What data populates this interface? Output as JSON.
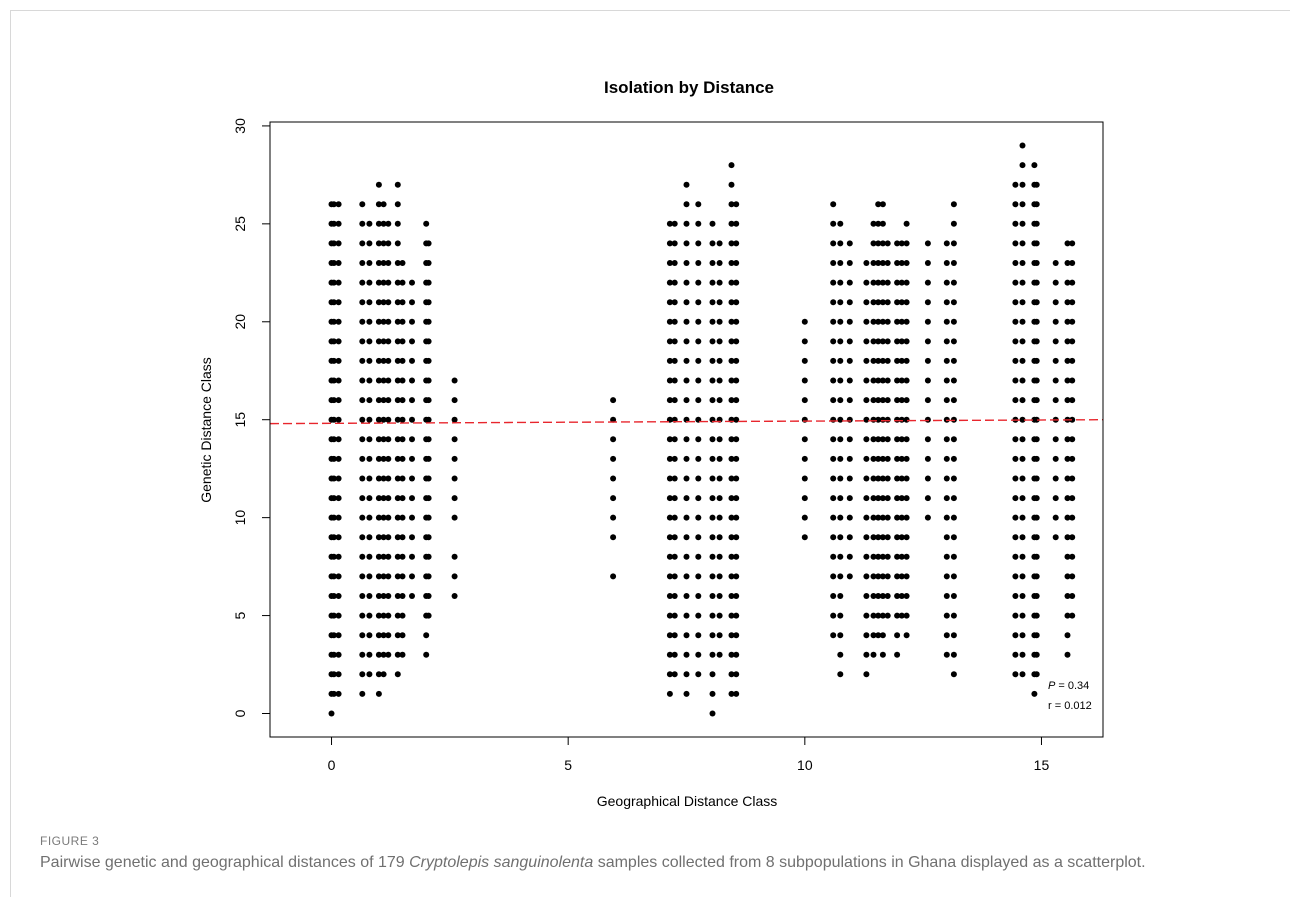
{
  "caption": {
    "label": "FIGURE 3",
    "text_before": "Pairwise genetic and geographical distances of 179 ",
    "species": "Cryptolepis sanguinolenta",
    "text_after": " samples collected from 8 subpopulations in Ghana displayed as a scatterplot."
  },
  "chart_data": {
    "type": "scatter",
    "title": "Isolation by Distance",
    "xlabel": "Geographical Distance Class",
    "ylabel": "Genetic Distance Class",
    "xlim": [
      -1.3,
      16.3
    ],
    "ylim": [
      -1.2,
      30.2
    ],
    "xticks": [
      0,
      5,
      10,
      15
    ],
    "yticks": [
      0,
      5,
      10,
      15,
      20,
      25,
      30
    ],
    "grid": false,
    "point_color": "#000000",
    "regression": {
      "color": "#e8262d",
      "style": "dashed",
      "y_at_xmin": 14.8,
      "y_at_xmax": 15.0
    },
    "annotation": {
      "p_label": "P",
      "p_value": "= 0.34",
      "r_text": "r = 0.012"
    },
    "columns": [
      {
        "x": 0.0,
        "y_min": 0,
        "y_max": 26,
        "gaps": []
      },
      {
        "x": 0.05,
        "y_min": 1,
        "y_max": 26,
        "gaps": []
      },
      {
        "x": 0.15,
        "y_min": 1,
        "y_max": 26,
        "gaps": []
      },
      {
        "x": 0.65,
        "y_min": 1,
        "y_max": 26,
        "gaps": []
      },
      {
        "x": 0.8,
        "y_min": 2,
        "y_max": 25,
        "gaps": []
      },
      {
        "x": 1.0,
        "y_min": 1,
        "y_max": 27,
        "gaps": []
      },
      {
        "x": 1.1,
        "y_min": 2,
        "y_max": 26,
        "gaps": []
      },
      {
        "x": 1.2,
        "y_min": 3,
        "y_max": 25,
        "gaps": []
      },
      {
        "x": 1.4,
        "y_min": 2,
        "y_max": 27,
        "gaps": []
      },
      {
        "x": 1.5,
        "y_min": 3,
        "y_max": 23,
        "gaps": []
      },
      {
        "x": 1.7,
        "y_min": 6,
        "y_max": 22,
        "gaps": []
      },
      {
        "x": 2.0,
        "y_min": 3,
        "y_max": 25,
        "gaps": []
      },
      {
        "x": 2.05,
        "y_min": 5,
        "y_max": 24,
        "gaps": []
      },
      {
        "x": 2.6,
        "y_min": 6,
        "y_max": 17,
        "gaps": [
          9
        ]
      },
      {
        "x": 5.95,
        "y_min": 7,
        "y_max": 16,
        "gaps": [
          8
        ]
      },
      {
        "x": 7.15,
        "y_min": 1,
        "y_max": 25,
        "gaps": []
      },
      {
        "x": 7.25,
        "y_min": 2,
        "y_max": 25,
        "gaps": []
      },
      {
        "x": 7.5,
        "y_min": 1,
        "y_max": 27,
        "gaps": []
      },
      {
        "x": 7.75,
        "y_min": 2,
        "y_max": 26,
        "gaps": []
      },
      {
        "x": 8.05,
        "y_min": 0,
        "y_max": 25,
        "gaps": []
      },
      {
        "x": 8.2,
        "y_min": 3,
        "y_max": 24,
        "gaps": []
      },
      {
        "x": 8.45,
        "y_min": 1,
        "y_max": 28,
        "gaps": []
      },
      {
        "x": 8.55,
        "y_min": 1,
        "y_max": 26,
        "gaps": []
      },
      {
        "x": 10.0,
        "y_min": 9,
        "y_max": 20,
        "gaps": []
      },
      {
        "x": 10.6,
        "y_min": 4,
        "y_max": 26,
        "gaps": []
      },
      {
        "x": 10.75,
        "y_min": 2,
        "y_max": 25,
        "gaps": []
      },
      {
        "x": 10.95,
        "y_min": 7,
        "y_max": 24,
        "gaps": []
      },
      {
        "x": 11.3,
        "y_min": 2,
        "y_max": 23,
        "gaps": []
      },
      {
        "x": 11.45,
        "y_min": 3,
        "y_max": 25,
        "gaps": []
      },
      {
        "x": 11.55,
        "y_min": 4,
        "y_max": 26,
        "gaps": []
      },
      {
        "x": 11.65,
        "y_min": 3,
        "y_max": 26,
        "gaps": []
      },
      {
        "x": 11.75,
        "y_min": 5,
        "y_max": 24,
        "gaps": []
      },
      {
        "x": 11.95,
        "y_min": 3,
        "y_max": 24,
        "gaps": []
      },
      {
        "x": 12.05,
        "y_min": 5,
        "y_max": 24,
        "gaps": []
      },
      {
        "x": 12.15,
        "y_min": 4,
        "y_max": 25,
        "gaps": []
      },
      {
        "x": 12.6,
        "y_min": 10,
        "y_max": 24,
        "gaps": []
      },
      {
        "x": 13.0,
        "y_min": 3,
        "y_max": 24,
        "gaps": []
      },
      {
        "x": 13.15,
        "y_min": 2,
        "y_max": 26,
        "gaps": []
      },
      {
        "x": 14.45,
        "y_min": 2,
        "y_max": 27,
        "gaps": []
      },
      {
        "x": 14.6,
        "y_min": 2,
        "y_max": 29,
        "gaps": []
      },
      {
        "x": 14.85,
        "y_min": 1,
        "y_max": 28,
        "gaps": []
      },
      {
        "x": 14.9,
        "y_min": 2,
        "y_max": 27,
        "gaps": []
      },
      {
        "x": 15.3,
        "y_min": 9,
        "y_max": 23,
        "gaps": []
      },
      {
        "x": 15.55,
        "y_min": 3,
        "y_max": 24,
        "gaps": []
      },
      {
        "x": 15.65,
        "y_min": 5,
        "y_max": 24,
        "gaps": []
      }
    ]
  }
}
